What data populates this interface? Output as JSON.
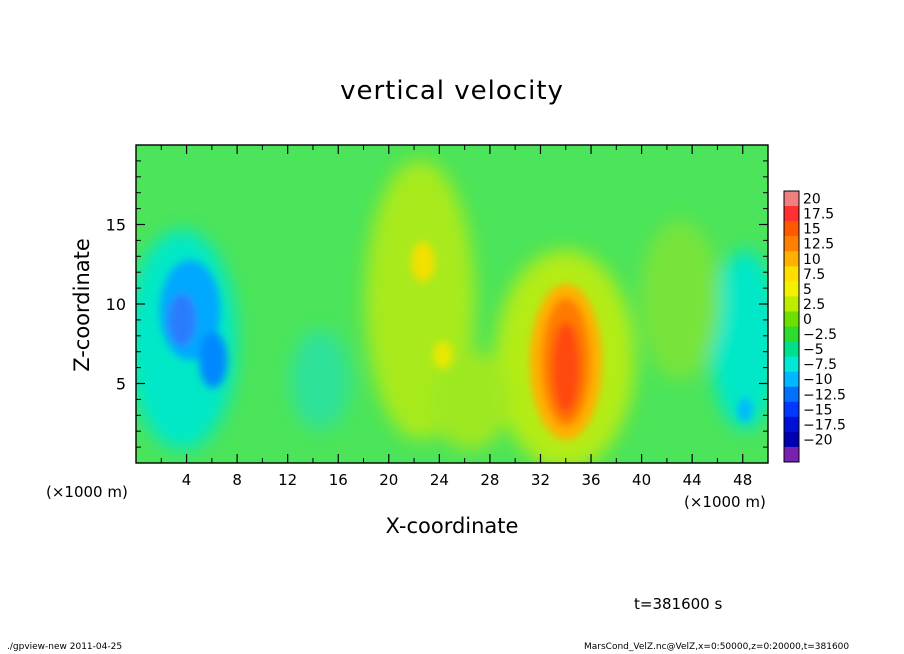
{
  "chart_data": {
    "type": "heatmap",
    "title": "vertical velocity",
    "xlabel": "X-coordinate",
    "ylabel": "Z-coordinate",
    "x_unit": "(×1000 m)",
    "x_unit_right": "(×1000 m)",
    "xlim": [
      0,
      50
    ],
    "ylim": [
      0,
      20
    ],
    "x_ticks": [
      "4",
      "8",
      "12",
      "16",
      "20",
      "24",
      "28",
      "32",
      "36",
      "40",
      "44",
      "48"
    ],
    "x_tick_values": [
      4,
      8,
      12,
      16,
      20,
      24,
      28,
      32,
      36,
      40,
      44,
      48
    ],
    "y_ticks": [
      "5",
      "10",
      "15"
    ],
    "y_tick_values": [
      5,
      10,
      15
    ],
    "colorbar": {
      "labels": [
        "20",
        "17.5",
        "15",
        "12.5",
        "10",
        "7.5",
        "5",
        "2.5",
        "0",
        "−2.5",
        "−5",
        "−7.5",
        "−10",
        "−12.5",
        "−15",
        "−17.5",
        "−20"
      ],
      "colors": [
        "#f08080",
        "#ff3030",
        "#ff5a00",
        "#ff8000",
        "#ffb000",
        "#ffde00",
        "#f2f200",
        "#bdec00",
        "#6ee000",
        "#2ddc2d",
        "#00e08a",
        "#00e8d6",
        "#00b8ff",
        "#0070ff",
        "#0038ff",
        "#0010d6",
        "#0000b0",
        "#7a20b0"
      ]
    },
    "features": [
      {
        "name": "updraft",
        "x": 34,
        "z": 6.5,
        "w": 16
      },
      {
        "name": "updraft",
        "x": 22.8,
        "z": 12.5,
        "w": 7
      },
      {
        "name": "updraft",
        "x": 24,
        "z": 6.5,
        "w": 5
      },
      {
        "name": "downdraft",
        "x": 5,
        "z": 9.5,
        "w": -10
      },
      {
        "name": "downdraft",
        "x": 6,
        "z": 6,
        "w": -9
      },
      {
        "name": "downdraft",
        "x": 48.5,
        "z": 4,
        "w": -6
      }
    ],
    "time_label": "t=381600 s"
  },
  "footer": {
    "left": "./gpview-new   2011-04-25",
    "right": "MarsCond_VelZ.nc@VelZ,x=0:50000,z=0:20000,t=381600"
  }
}
